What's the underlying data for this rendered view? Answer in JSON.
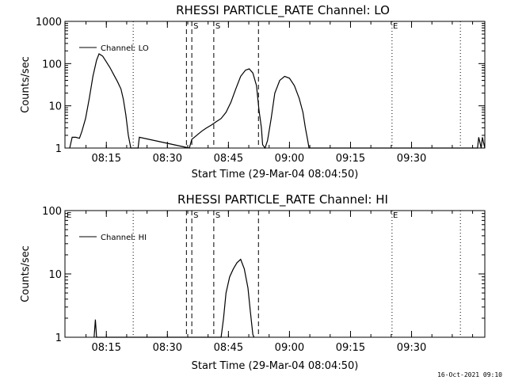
{
  "footer": {
    "timestamp": "16-Oct-2021 09:10"
  },
  "chart_data": [
    {
      "type": "line",
      "title": "RHESSI PARTICLE_RATE Channel: LO",
      "xlabel": "Start Time (29-Mar-04 08:04:50)",
      "ylabel": "Counts/sec",
      "yscale": "log",
      "ylim": [
        1,
        1000
      ],
      "xlim": [
        8.0805,
        9.8
      ],
      "yticks": [
        "1",
        "10",
        "100",
        "1000"
      ],
      "xticks": [
        "08:15",
        "08:30",
        "08:45",
        "09:00",
        "09:15",
        "09:30"
      ],
      "legend": {
        "label": "Channel: LO",
        "position": "top-left"
      },
      "markers": [
        {
          "label": "S",
          "x": 8.6
        },
        {
          "label": "S",
          "x": 8.69
        }
      ],
      "markers_nolabel_dashed": [
        8.578,
        8.873
      ],
      "marker_E": {
        "label": "E",
        "x": 9.417
      },
      "dotted_lines": [
        8.36,
        9.42,
        9.7
      ],
      "series": [
        {
          "name": "Channel: LO",
          "points": [
            [
              8.1,
              1
            ],
            [
              8.11,
              1.8
            ],
            [
              8.125,
              1.8
            ],
            [
              8.14,
              1.7
            ],
            [
              8.15,
              2.5
            ],
            [
              8.165,
              5
            ],
            [
              8.18,
              15
            ],
            [
              8.195,
              50
            ],
            [
              8.21,
              120
            ],
            [
              8.22,
              170
            ],
            [
              8.235,
              150
            ],
            [
              8.25,
              110
            ],
            [
              8.265,
              80
            ],
            [
              8.28,
              55
            ],
            [
              8.295,
              38
            ],
            [
              8.31,
              25
            ],
            [
              8.32,
              14
            ],
            [
              8.33,
              6
            ],
            [
              8.34,
              2
            ],
            [
              8.35,
              1
            ],
            [
              8.38,
              1
            ],
            [
              8.385,
              1.8
            ],
            [
              8.59,
              1
            ],
            [
              8.6,
              1.6
            ],
            [
              8.62,
              2
            ],
            [
              8.64,
              2.5
            ],
            [
              8.66,
              3
            ],
            [
              8.68,
              3.5
            ],
            [
              8.7,
              4.2
            ],
            [
              8.72,
              5
            ],
            [
              8.74,
              7
            ],
            [
              8.76,
              12
            ],
            [
              8.78,
              25
            ],
            [
              8.8,
              50
            ],
            [
              8.82,
              70
            ],
            [
              8.835,
              75
            ],
            [
              8.85,
              60
            ],
            [
              8.865,
              30
            ],
            [
              8.875,
              8
            ],
            [
              8.885,
              3
            ],
            [
              8.89,
              1.2
            ],
            [
              8.9,
              1
            ],
            [
              8.91,
              1.5
            ],
            [
              8.925,
              5
            ],
            [
              8.94,
              20
            ],
            [
              8.96,
              40
            ],
            [
              8.98,
              50
            ],
            [
              9.0,
              45
            ],
            [
              9.02,
              30
            ],
            [
              9.04,
              15
            ],
            [
              9.055,
              7
            ],
            [
              9.065,
              3
            ],
            [
              9.075,
              1.5
            ],
            [
              9.08,
              1
            ],
            [
              9.77,
              1
            ],
            [
              9.775,
              1.8
            ],
            [
              9.785,
              1
            ],
            [
              9.79,
              1.8
            ],
            [
              9.8,
              1
            ]
          ]
        }
      ]
    },
    {
      "type": "line",
      "title": "RHESSI PARTICLE_RATE Channel: HI",
      "xlabel": "Start Time (29-Mar-04 08:04:50)",
      "ylabel": "Counts/sec",
      "yscale": "log",
      "ylim": [
        1,
        100
      ],
      "xlim": [
        8.0805,
        9.8
      ],
      "yticks": [
        "1",
        "10",
        "100"
      ],
      "xticks": [
        "08:15",
        "08:30",
        "08:45",
        "09:00",
        "09:15",
        "09:30"
      ],
      "legend": {
        "label": "Channel: HI",
        "position": "top-left"
      },
      "markers": [
        {
          "label": "S",
          "x": 8.6
        },
        {
          "label": "S",
          "x": 8.69
        }
      ],
      "markers_nolabel_dashed": [
        8.578,
        8.873
      ],
      "marker_E": {
        "label": "E",
        "x": 9.417
      },
      "marker_E_left": {
        "label": "E",
        "x": 8.088
      },
      "dotted_lines": [
        8.36,
        9.42,
        9.7
      ],
      "series": [
        {
          "name": "Channel: HI",
          "points": [
            [
              8.2,
              1
            ],
            [
              8.205,
              1.9
            ],
            [
              8.21,
              1
            ],
            [
              8.72,
              1
            ],
            [
              8.73,
              2
            ],
            [
              8.74,
              5
            ],
            [
              8.755,
              9
            ],
            [
              8.77,
              12
            ],
            [
              8.785,
              15
            ],
            [
              8.8,
              17
            ],
            [
              8.815,
              12
            ],
            [
              8.83,
              6
            ],
            [
              8.84,
              2.5
            ],
            [
              8.85,
              1.1
            ],
            [
              8.855,
              1
            ]
          ]
        }
      ]
    }
  ]
}
